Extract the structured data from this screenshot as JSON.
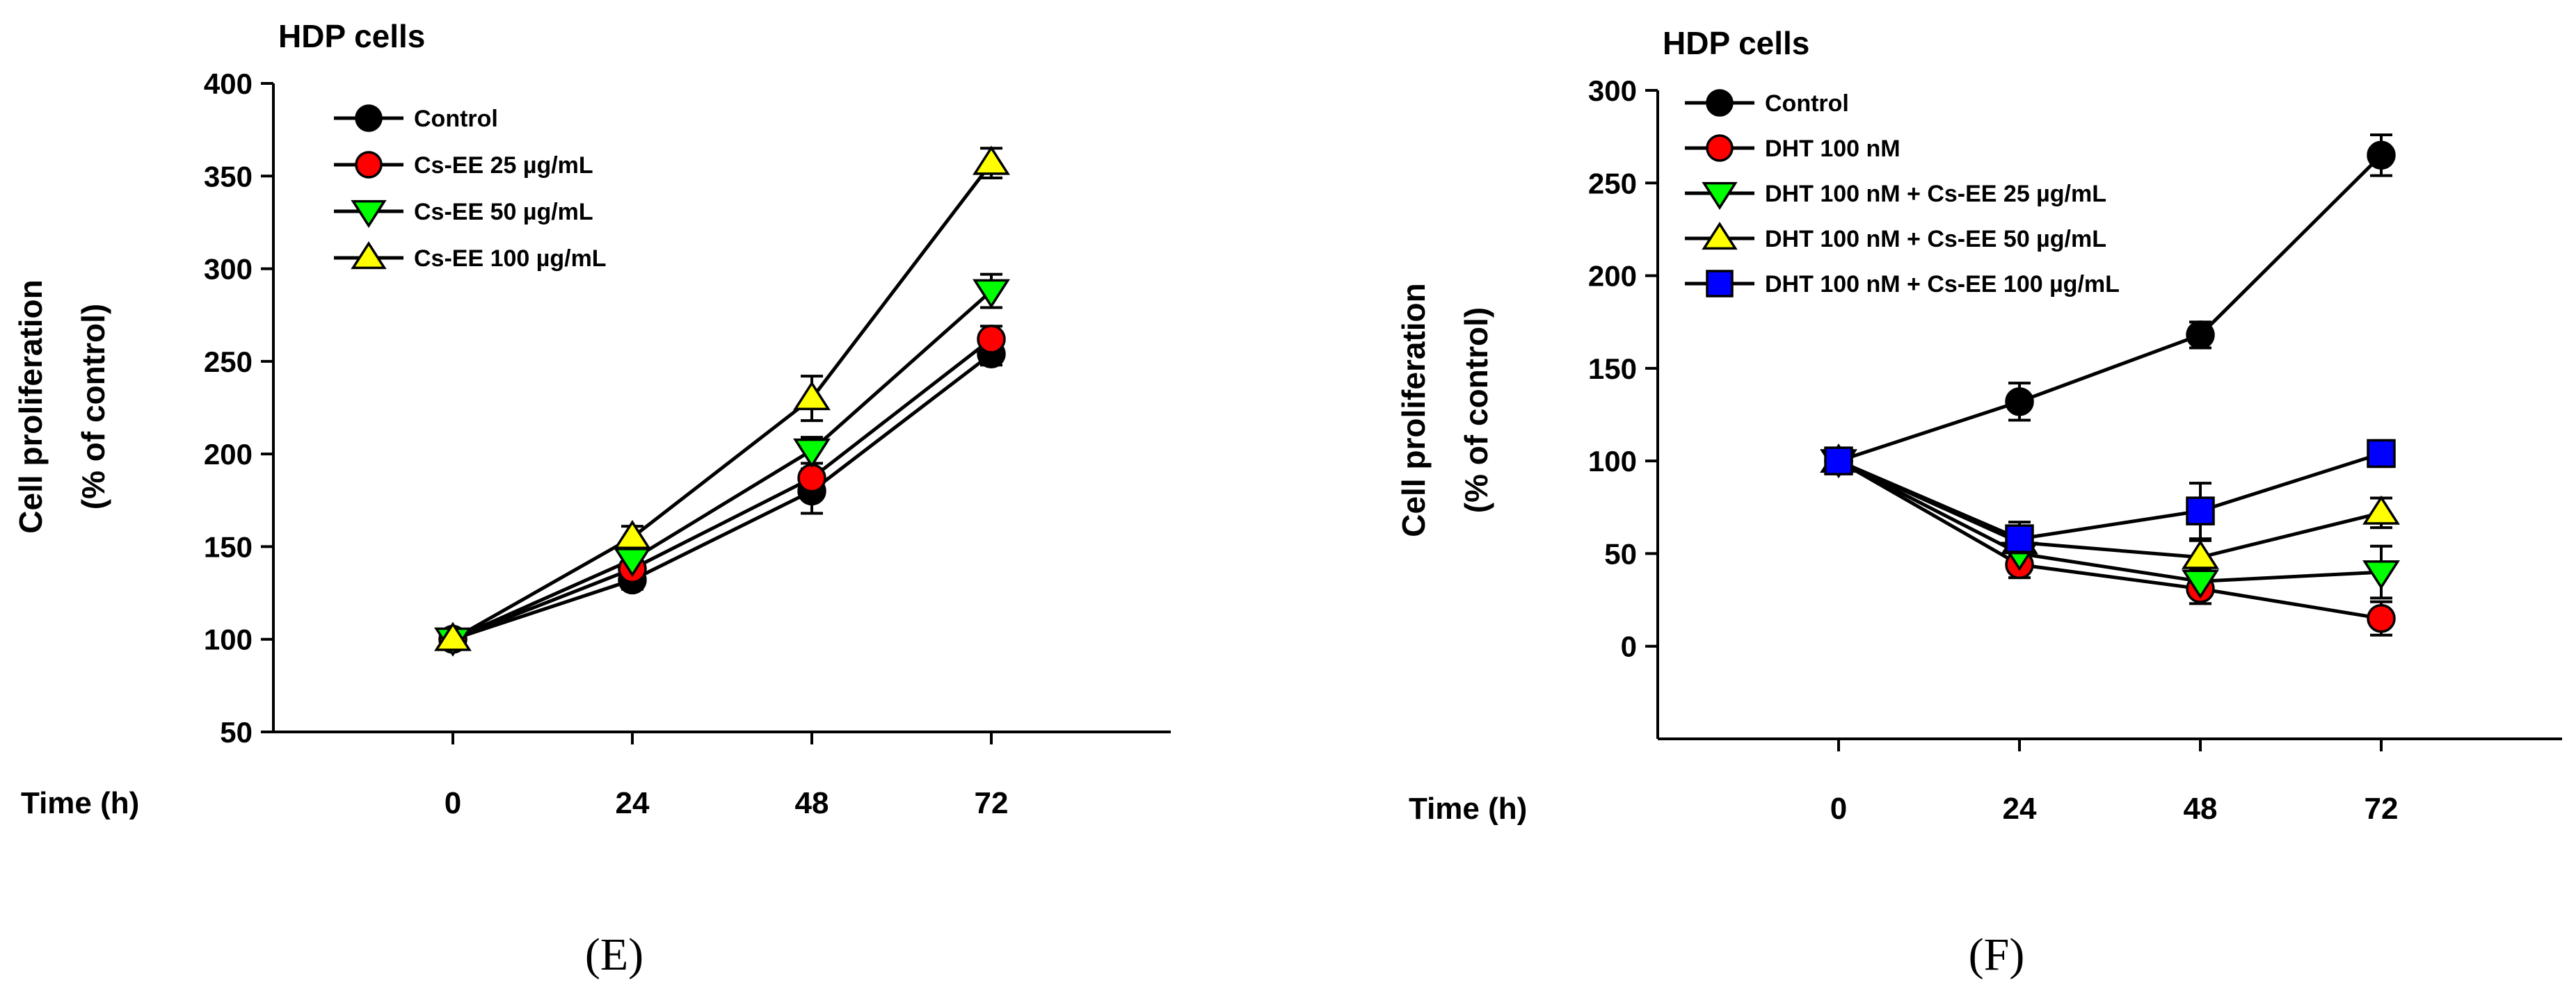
{
  "chart_data": [
    {
      "type": "line",
      "panel_label": "(E)",
      "title": "HDP cells",
      "xlabel": "Time (h)",
      "ylabel_line1": "Cell proliferation",
      "ylabel_line2": "(% of control)",
      "x": [
        0,
        24,
        48,
        72
      ],
      "xlim": [
        -24,
        96
      ],
      "ylim": [
        50,
        400
      ],
      "yticks": [
        50,
        100,
        150,
        200,
        250,
        300,
        350,
        400
      ],
      "legend_position": "top-left",
      "series": [
        {
          "name": "Control",
          "marker": "circle",
          "color": "#000000",
          "values": [
            100,
            132,
            180,
            254
          ],
          "errors": [
            3,
            5,
            12,
            6
          ]
        },
        {
          "name": "Cs-EE 25 µg/mL",
          "marker": "circle",
          "color": "#ff0000",
          "values": [
            100,
            138,
            187,
            262
          ],
          "errors": [
            3,
            5,
            8,
            7
          ]
        },
        {
          "name": "Cs-EE 50 µg/mL",
          "marker": "triangle-down",
          "color": "#00ff00",
          "values": [
            100,
            143,
            202,
            288
          ],
          "errors": [
            3,
            5,
            7,
            9
          ]
        },
        {
          "name": "Cs-EE 100 µg/mL",
          "marker": "triangle-up",
          "color": "#ffff00",
          "values": [
            100,
            155,
            230,
            357
          ],
          "errors": [
            3,
            6,
            12,
            8
          ]
        }
      ]
    },
    {
      "type": "line",
      "panel_label": "(F)",
      "title": "HDP cells",
      "xlabel": "Time (h)",
      "ylabel_line1": "Cell proliferation",
      "ylabel_line2": "(% of control)",
      "x": [
        0,
        24,
        48,
        72
      ],
      "xlim": [
        -24,
        96
      ],
      "ylim": [
        -50,
        300
      ],
      "yticks": [
        0,
        50,
        100,
        150,
        200,
        250,
        300
      ],
      "legend_position": "top-left",
      "series": [
        {
          "name": "Control",
          "marker": "circle",
          "color": "#000000",
          "values": [
            100,
            132,
            168,
            265
          ],
          "errors": [
            3,
            10,
            7,
            11
          ]
        },
        {
          "name": "DHT 100 nM",
          "marker": "circle",
          "color": "#ff0000",
          "values": [
            100,
            44,
            31,
            15
          ],
          "errors": [
            3,
            7,
            8,
            9
          ]
        },
        {
          "name": "DHT 100 nM + Cs-EE 25 µg/mL",
          "marker": "triangle-down",
          "color": "#00ff00",
          "values": [
            100,
            50,
            35,
            40
          ],
          "errors": [
            3,
            6,
            7,
            14
          ]
        },
        {
          "name": "DHT 100 nM + Cs-EE 50 µg/mL",
          "marker": "triangle-up",
          "color": "#ffff00",
          "values": [
            100,
            56,
            48,
            72
          ],
          "errors": [
            3,
            6,
            9,
            8
          ]
        },
        {
          "name": "DHT 100 nM + Cs-EE 100 µg/mL",
          "marker": "square",
          "color": "#0000ff",
          "values": [
            100,
            58,
            73,
            104
          ],
          "errors": [
            3,
            9,
            15,
            7
          ]
        }
      ]
    }
  ]
}
